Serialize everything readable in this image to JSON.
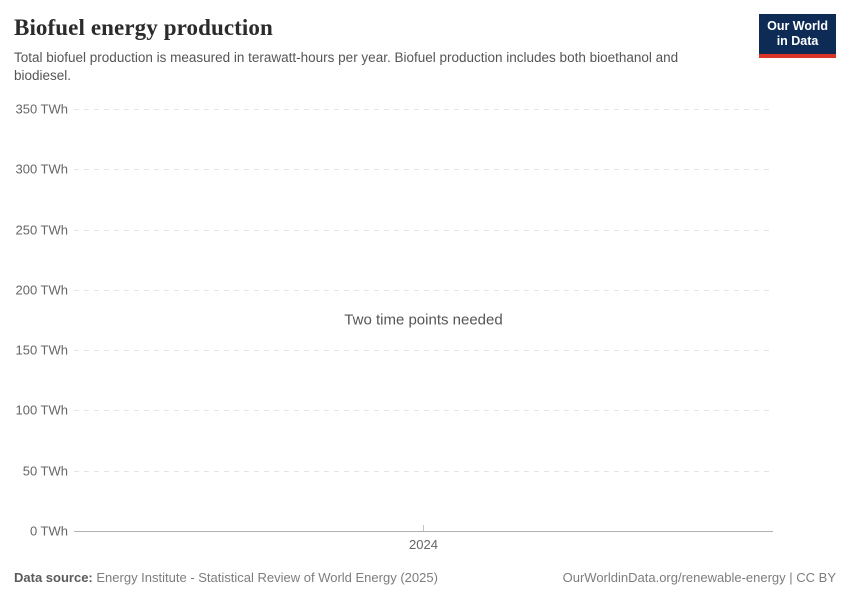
{
  "header": {
    "title": "Biofuel energy production",
    "subtitle": "Total biofuel production is measured in terawatt-hours per year. Biofuel production includes both bioethanol and biodiesel."
  },
  "logo": {
    "line1": "Our World",
    "line2": "in Data",
    "bg_color": "#0d2b55",
    "accent_color": "#dc3327"
  },
  "chart_data": {
    "type": "line",
    "title": "Biofuel energy production",
    "xlabel": "",
    "ylabel": "",
    "unit": "TWh",
    "ylim": [
      0,
      350
    ],
    "yticks": [
      {
        "value": 0,
        "label": "0 TWh"
      },
      {
        "value": 50,
        "label": "50 TWh"
      },
      {
        "value": 100,
        "label": "100 TWh"
      },
      {
        "value": 150,
        "label": "150 TWh"
      },
      {
        "value": 200,
        "label": "200 TWh"
      },
      {
        "value": 250,
        "label": "250 TWh"
      },
      {
        "value": 300,
        "label": "300 TWh"
      },
      {
        "value": 350,
        "label": "350 TWh"
      }
    ],
    "xticks": [
      "2024"
    ],
    "series": [],
    "empty_message": "Two time points needed",
    "grid": "horizontal-dashed",
    "legend_position": "none"
  },
  "footer": {
    "datasource_label": "Data source:",
    "datasource_value": "Energy Institute - Statistical Review of World Energy (2025)",
    "link": "OurWorldinData.org/renewable-energy | CC BY"
  }
}
